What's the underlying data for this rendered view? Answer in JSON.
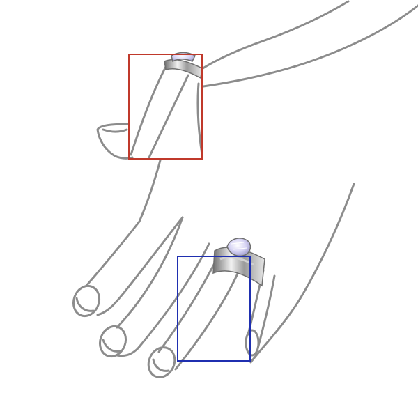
{
  "scene": {
    "subject": "hand-with-ring",
    "line_color": "#8c8c8c",
    "ring_metal_color": "#c9c9c9",
    "gem_color": "#c9c6ea"
  },
  "annotations": [
    {
      "name": "upper-finger-box",
      "color": "#c0392b"
    },
    {
      "name": "ring-finger-box",
      "color": "#1f2fb0"
    }
  ]
}
